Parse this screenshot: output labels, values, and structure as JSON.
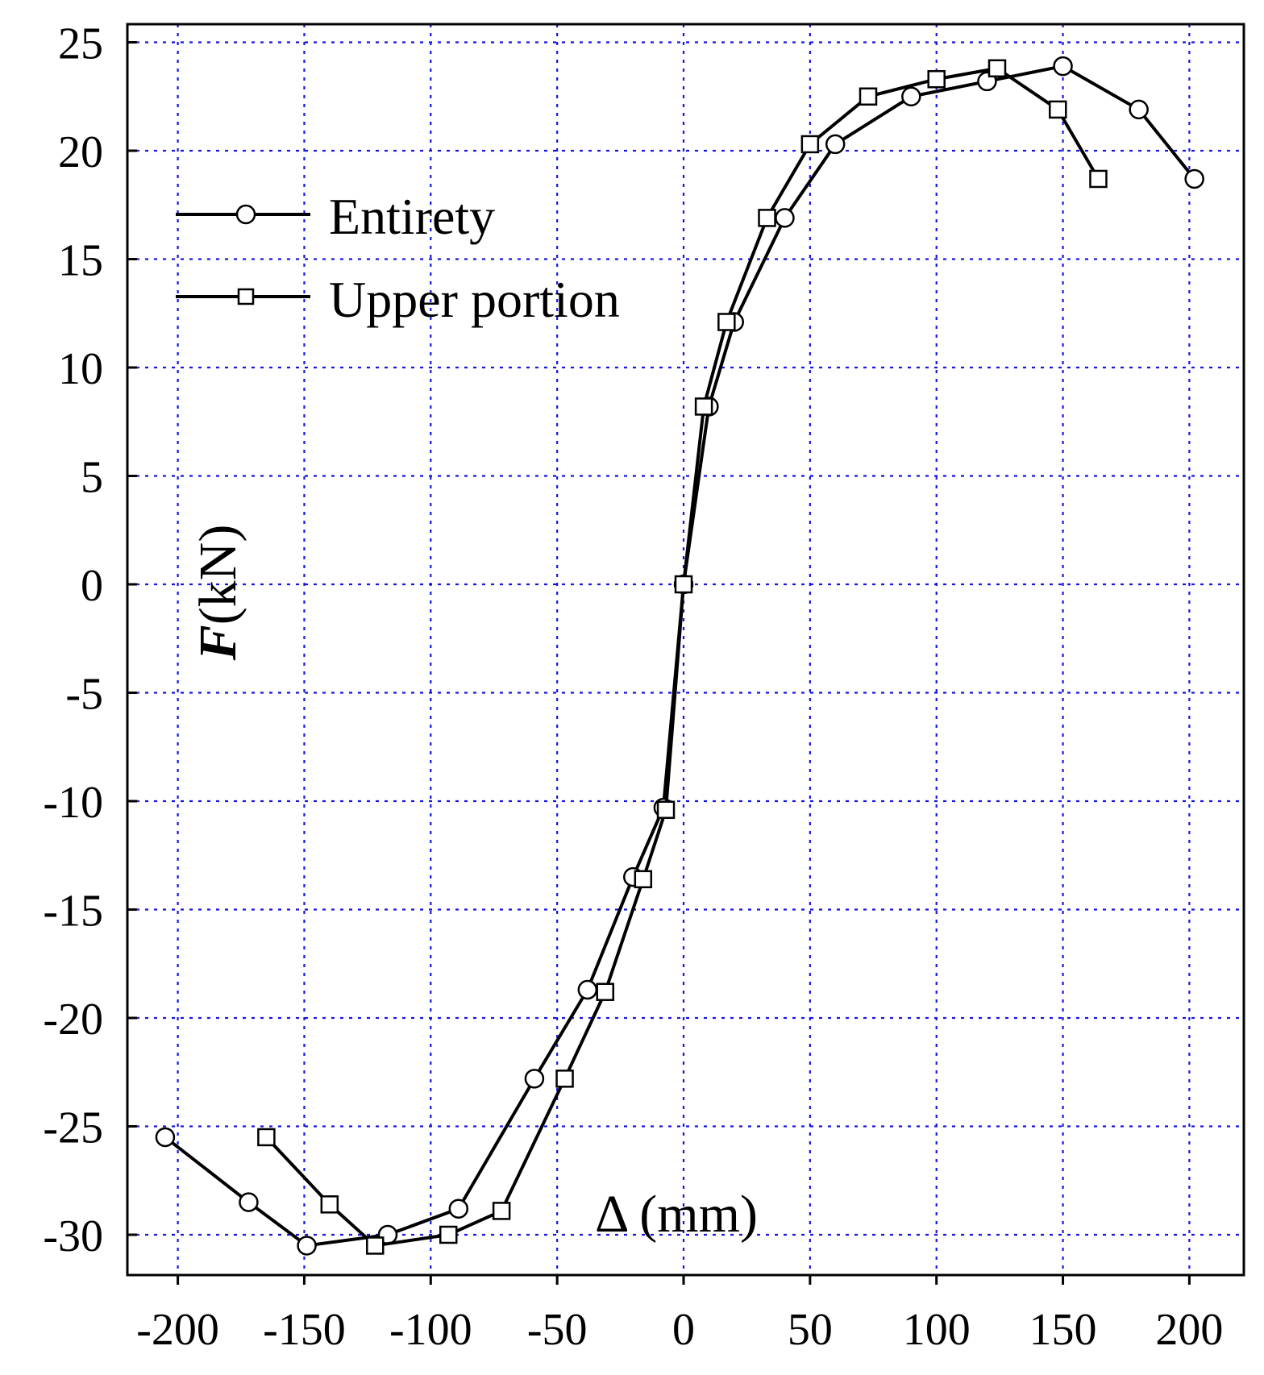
{
  "chart_data": {
    "type": "line",
    "title": "",
    "xlabel": "Δ (mm)",
    "ylabel_symbol": "F",
    "ylabel_unit": "(kN)",
    "xlim": [
      -220,
      220
    ],
    "ylim": [
      -32,
      25
    ],
    "xticks": [
      -200,
      -150,
      -100,
      -50,
      0,
      50,
      100,
      150,
      200
    ],
    "yticks": [
      25,
      20,
      15,
      10,
      5,
      0,
      -5,
      -10,
      -15,
      -20,
      -25,
      -30
    ],
    "xtick_labels": [
      "-200",
      "-150",
      "-100",
      "-50",
      "0",
      "50",
      "100",
      "150",
      "200"
    ],
    "ytick_labels": [
      "25",
      "20",
      "15",
      "10",
      "5",
      "0",
      "-5",
      "-10",
      "-15",
      "-20",
      "-25",
      "-30"
    ],
    "grid": true,
    "grid_color": "#1515e6",
    "legend_position": "top-left",
    "series": [
      {
        "name": "Entirety",
        "marker": "circle",
        "color": "#000000",
        "points": [
          [
            -205,
            -25.5
          ],
          [
            -172,
            -28.5
          ],
          [
            -149,
            -30.5
          ],
          [
            -117,
            -30.0
          ],
          [
            -89,
            -28.8
          ],
          [
            -59,
            -22.8
          ],
          [
            -38,
            -18.7
          ],
          [
            -20,
            -13.5
          ],
          [
            -8,
            -10.3
          ],
          [
            0,
            0
          ],
          [
            10,
            8.2
          ],
          [
            20,
            12.1
          ],
          [
            40,
            16.9
          ],
          [
            60,
            20.3
          ],
          [
            90,
            22.5
          ],
          [
            120,
            23.2
          ],
          [
            150,
            23.9
          ],
          [
            180,
            21.9
          ],
          [
            202,
            18.7
          ]
        ]
      },
      {
        "name": "Upper portion",
        "marker": "square",
        "color": "#000000",
        "points": [
          [
            -165,
            -25.5
          ],
          [
            -140,
            -28.6
          ],
          [
            -122,
            -30.5
          ],
          [
            -93,
            -30.0
          ],
          [
            -72,
            -28.9
          ],
          [
            -47,
            -22.8
          ],
          [
            -31,
            -18.8
          ],
          [
            -16,
            -13.6
          ],
          [
            -7,
            -10.4
          ],
          [
            0,
            0
          ],
          [
            8,
            8.2
          ],
          [
            17,
            12.1
          ],
          [
            33,
            16.9
          ],
          [
            50,
            20.3
          ],
          [
            73,
            22.5
          ],
          [
            100,
            23.3
          ],
          [
            124,
            23.8
          ],
          [
            148,
            21.9
          ],
          [
            164,
            18.7
          ]
        ]
      }
    ]
  }
}
